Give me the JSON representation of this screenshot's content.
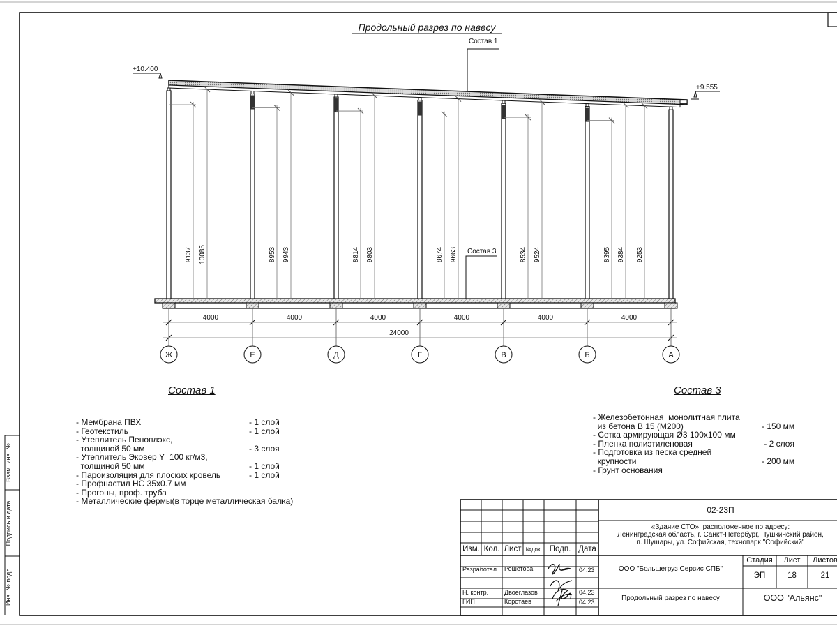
{
  "drawing": {
    "title": "Продольный разрез по навесу",
    "callout_roof": "Состав 1",
    "callout_floor": "Состав 3",
    "elevation_left": "+10.400",
    "elevation_right": "+9.555",
    "columns": [
      {
        "axis": "Ж",
        "dim_short": "9137",
        "dim_tall": "10085"
      },
      {
        "axis": "Е",
        "dim_short": "8953",
        "dim_tall": "9943"
      },
      {
        "axis": "Д",
        "dim_short": "8814",
        "dim_tall": "9803"
      },
      {
        "axis": "Г",
        "dim_short": "8674",
        "dim_tall": "9663"
      },
      {
        "axis": "В",
        "dim_short": "8534",
        "dim_tall": "9524"
      },
      {
        "axis": "Б",
        "dim_short": "8395",
        "dim_tall": "9384"
      },
      {
        "axis": "А",
        "dim_short": "",
        "dim_tall": "9253"
      }
    ],
    "bay_dims": [
      "4000",
      "4000",
      "4000",
      "4000",
      "4000",
      "4000"
    ],
    "overall_dim": "24000"
  },
  "sostav1": {
    "heading": "Состав 1",
    "items": [
      {
        "name": "- Мембрана ПВХ",
        "qty": "- 1 слой"
      },
      {
        "name": "- Геотекстиль",
        "qty": "- 1 слой"
      },
      {
        "name": "- Утеплитель Пеноплэкс,\n  толщиной 50 мм",
        "qty": "- 3 слоя"
      },
      {
        "name": "- Утеплитель Эковер Y=100 кг/м3,\n  толщиной 50 мм",
        "qty": "- 1 слой"
      },
      {
        "name": "- Пароизоляция для плоских кровель",
        "qty": "- 1 слой"
      },
      {
        "name": "- Профнастил НС 35х0.7 мм",
        "qty": ""
      },
      {
        "name": "- Прогоны, проф. труба",
        "qty": ""
      },
      {
        "name": "- Металлические фермы(в торце металлическая балка)",
        "qty": ""
      }
    ]
  },
  "sostav3": {
    "heading": "Состав 3",
    "items": [
      {
        "name": "- Железобетонная  монолитная плита\n  из бетона В 15 (М200)",
        "qty": "- 150 мм"
      },
      {
        "name": "- Сетка армирующая Ø3 100х100 мм",
        "qty": ""
      },
      {
        "name": "- Пленка полиэтиленовая",
        "qty": " - 2 слоя"
      },
      {
        "name": "- Подготовка из песка средней\n  крупности",
        "qty": "- 200 мм"
      },
      {
        "name": "- Грунт основания",
        "qty": ""
      }
    ]
  },
  "margin_stamp": {
    "replace_inv": "Взам. инв. №",
    "sign_date": "Подпись и дата",
    "inv_orig": "Инв. № подл."
  },
  "title_block": {
    "code": "02-23П",
    "object": "«Здание СТО», расположенное по адресу:\nЛенинградская область, г. Санкт-Петербург, Пушкинский район,\nп. Шушары, ул. Софийская, технопарк \"Софийский\"",
    "headers": {
      "izm": "Изм.",
      "kol": "Кол.",
      "list": "Лист",
      "ndok": "№док.",
      "podp": "Подп.",
      "data": "Дата"
    },
    "rows": [
      {
        "role": "Разработал",
        "name": "Решетова",
        "date": "04.23"
      },
      {
        "role": "Н. контр.",
        "name": "Двоеглазов",
        "date": "04.23"
      },
      {
        "role": "ГИП",
        "name": "Коротаев",
        "date": "04.23"
      }
    ],
    "developer": "ООО \"Большегруз Сервис СПБ\"",
    "stage_label": "Стадия",
    "sheet_label": "Лист",
    "sheets_label": "Листов",
    "stage": "ЭП",
    "sheet": "18",
    "sheets": "21",
    "sheet_title": "Продольный разрез по навесу",
    "company": "ООО \"Альянс\""
  }
}
